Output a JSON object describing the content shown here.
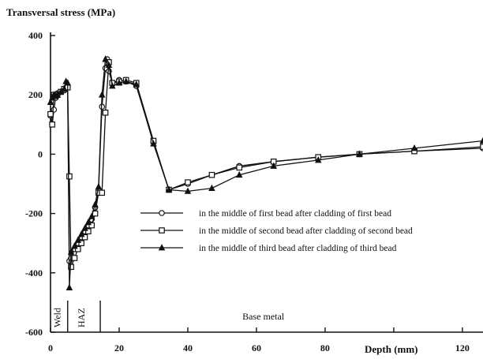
{
  "chart_data": {
    "type": "line",
    "ylabel": "Transversal stress (MPa)",
    "xlabel": "Depth (mm)",
    "xlim": [
      0,
      126
    ],
    "ylim": [
      -600,
      400
    ],
    "x_ticks": [
      0,
      20,
      40,
      60,
      80,
      100,
      120
    ],
    "x_tick_labels": [
      "0",
      "20",
      "40",
      "60",
      "80",
      "",
      "120"
    ],
    "y_ticks": [
      400,
      200,
      0,
      -200,
      -400,
      -600
    ],
    "y_tick_labels": [
      "400",
      "200",
      "0",
      "-200",
      "-400",
      "-600"
    ],
    "grid": false,
    "legend_position": "center-right",
    "regions": [
      {
        "label": "Weld",
        "orientation": "vertical",
        "x_center": 2
      },
      {
        "label": "HAZ",
        "orientation": "vertical",
        "x_center": 9
      },
      {
        "label": "Base metal",
        "orientation": "horizontal",
        "x_center": 62
      }
    ],
    "region_boundaries": [
      5,
      14.5
    ],
    "series": [
      {
        "name": "in the middle of first bead after cladding of first bead",
        "marker": "circle",
        "x": [
          0,
          0.5,
          1,
          1.5,
          2,
          3,
          4,
          4.5,
          5,
          5.5,
          6,
          7,
          8,
          9,
          10,
          11,
          12,
          13,
          14,
          15,
          16,
          16.5,
          17,
          18,
          20,
          22,
          25,
          30,
          34.5,
          40,
          47,
          55,
          65,
          78,
          90,
          106,
          126
        ],
        "y": [
          130,
          100,
          150,
          190,
          205,
          210,
          215,
          225,
          225,
          -360,
          -350,
          -320,
          -300,
          -280,
          -260,
          -240,
          -220,
          -180,
          -120,
          160,
          290,
          320,
          280,
          240,
          250,
          245,
          230,
          40,
          -120,
          -100,
          -70,
          -40,
          -25,
          -10,
          0,
          10,
          20
        ]
      },
      {
        "name": "in the middle of second bead after cladding of second bead",
        "marker": "square",
        "x": [
          0,
          0.5,
          1,
          2,
          3,
          4,
          5,
          5.5,
          6,
          7,
          8,
          9,
          10,
          11,
          12,
          13,
          14,
          15,
          16,
          17,
          18,
          20,
          22,
          25,
          30,
          34.5,
          40,
          47,
          55,
          65,
          78,
          90,
          106,
          126
        ],
        "y": [
          135,
          100,
          200,
          200,
          210,
          220,
          225,
          -75,
          -380,
          -350,
          -320,
          -300,
          -280,
          -260,
          -240,
          -200,
          -130,
          -130,
          140,
          310,
          240,
          245,
          250,
          240,
          45,
          -120,
          -95,
          -70,
          -45,
          -25,
          -10,
          0,
          10,
          25
        ]
      },
      {
        "name": "in the middle of third bead after cladding of third bead",
        "marker": "triangle",
        "x": [
          0,
          0.5,
          1,
          1.5,
          2,
          3,
          4,
          4.5,
          5,
          5.5,
          6,
          7,
          8,
          9,
          10,
          11,
          12,
          13,
          14,
          15,
          16,
          17,
          18,
          20,
          22,
          25,
          30,
          34.5,
          40,
          47,
          55,
          65,
          78,
          90,
          106,
          126
        ],
        "y": [
          175,
          190,
          200,
          195,
          200,
          210,
          220,
          245,
          240,
          -450,
          -330,
          -310,
          -290,
          -270,
          -250,
          -230,
          -210,
          -170,
          -110,
          200,
          320,
          300,
          230,
          240,
          245,
          235,
          35,
          -120,
          -125,
          -115,
          -70,
          -40,
          -20,
          0,
          20,
          45
        ]
      }
    ]
  }
}
